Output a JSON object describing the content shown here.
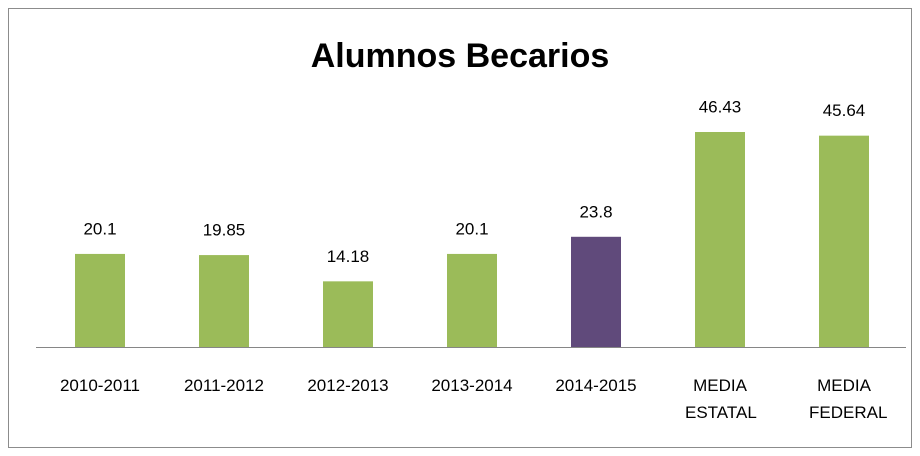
{
  "chart_data": {
    "type": "bar",
    "title": "Alumnos Becarios",
    "categories": [
      "2010-2011",
      "2011-2012",
      "2012-2013",
      "2013-2014",
      "2014-2015",
      "MEDIA ESTATAL",
      "MEDIA FEDERAL"
    ],
    "values": [
      20.1,
      19.85,
      14.18,
      20.1,
      23.8,
      46.43,
      45.64
    ],
    "colors": [
      "#9bbb59",
      "#9bbb59",
      "#9bbb59",
      "#9bbb59",
      "#604a7b",
      "#9bbb59",
      "#9bbb59"
    ]
  }
}
